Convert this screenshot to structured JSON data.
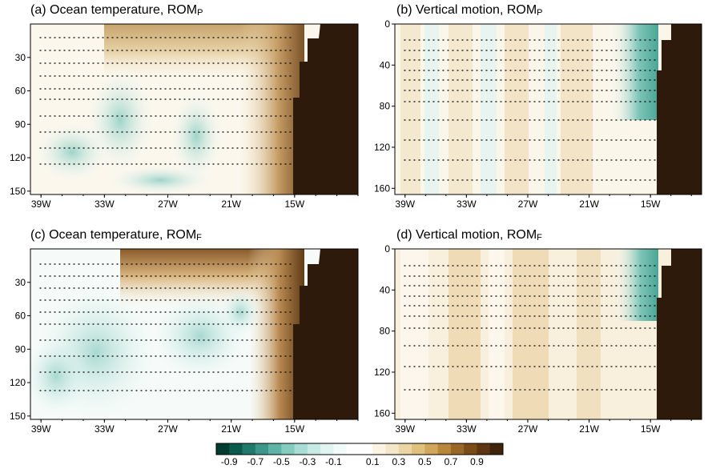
{
  "chart_data": [
    {
      "type": "heatmap",
      "panel": "a",
      "title": "(a) Ocean temperature, ROM",
      "title_sub": "P",
      "x_ticks": [
        "39W",
        "33W",
        "27W",
        "21W",
        "15W"
      ],
      "x_values": [
        -39,
        -33,
        -27,
        -21,
        -15
      ],
      "y_ticks": [
        "30",
        "60",
        "90",
        "120",
        "150"
      ],
      "y_values": [
        30,
        60,
        90,
        120,
        150
      ],
      "xlim": [
        -40,
        -9
      ],
      "ylim": [
        0,
        153
      ]
    },
    {
      "type": "heatmap",
      "panel": "b",
      "title": "(b) Vertical motion, ROM",
      "title_sub": "P",
      "x_ticks": [
        "39W",
        "33W",
        "27W",
        "21W",
        "15W"
      ],
      "x_values": [
        -39,
        -33,
        -27,
        -21,
        -15
      ],
      "y_ticks": [
        "0",
        "40",
        "80",
        "120",
        "160"
      ],
      "y_values": [
        0,
        40,
        80,
        120,
        160
      ],
      "xlim": [
        -40,
        -10
      ],
      "ylim": [
        0,
        166
      ]
    },
    {
      "type": "heatmap",
      "panel": "c",
      "title": "(c) Ocean temperature, ROM",
      "title_sub": "F",
      "x_ticks": [
        "39W",
        "33W",
        "27W",
        "21W",
        "15W"
      ],
      "x_values": [
        -39,
        -33,
        -27,
        -21,
        -15
      ],
      "y_ticks": [
        "30",
        "60",
        "90",
        "120",
        "150"
      ],
      "y_values": [
        30,
        60,
        90,
        120,
        150
      ],
      "xlim": [
        -40,
        -9
      ],
      "ylim": [
        0,
        153
      ]
    },
    {
      "type": "heatmap",
      "panel": "d",
      "title": "(d) Vertical motion, ROM",
      "title_sub": "F",
      "x_ticks": [
        "39W",
        "33W",
        "27W",
        "21W",
        "15W"
      ],
      "x_values": [
        -39,
        -33,
        -27,
        -21,
        -15
      ],
      "y_ticks": [
        "0",
        "40",
        "80",
        "120",
        "160"
      ],
      "y_values": [
        0,
        40,
        80,
        120,
        160
      ],
      "xlim": [
        -40,
        -10
      ],
      "ylim": [
        0,
        166
      ]
    }
  ],
  "colorbar": {
    "labels": [
      "-0.9",
      "-0.7",
      "-0.5",
      "-0.3",
      "-0.1",
      "0.1",
      "0.3",
      "0.5",
      "0.7",
      "0.9"
    ],
    "colors": [
      "#003c30",
      "#0b5a4e",
      "#1f7a6c",
      "#3c978a",
      "#5eb3a6",
      "#86cbc0",
      "#a9dcd4",
      "#c8eae5",
      "#e2f4f1",
      "#f3fbfa",
      "#ffffff",
      "#ffffff",
      "#fbf4e4",
      "#f4e6c8",
      "#ebd5a4",
      "#dfc07c",
      "#cfa65a",
      "#b8873c",
      "#9a6826",
      "#7a4d18",
      "#5e3611",
      "#3f230a"
    ]
  },
  "colors": {
    "land": "#2e1a0a",
    "axis": "#000000"
  }
}
